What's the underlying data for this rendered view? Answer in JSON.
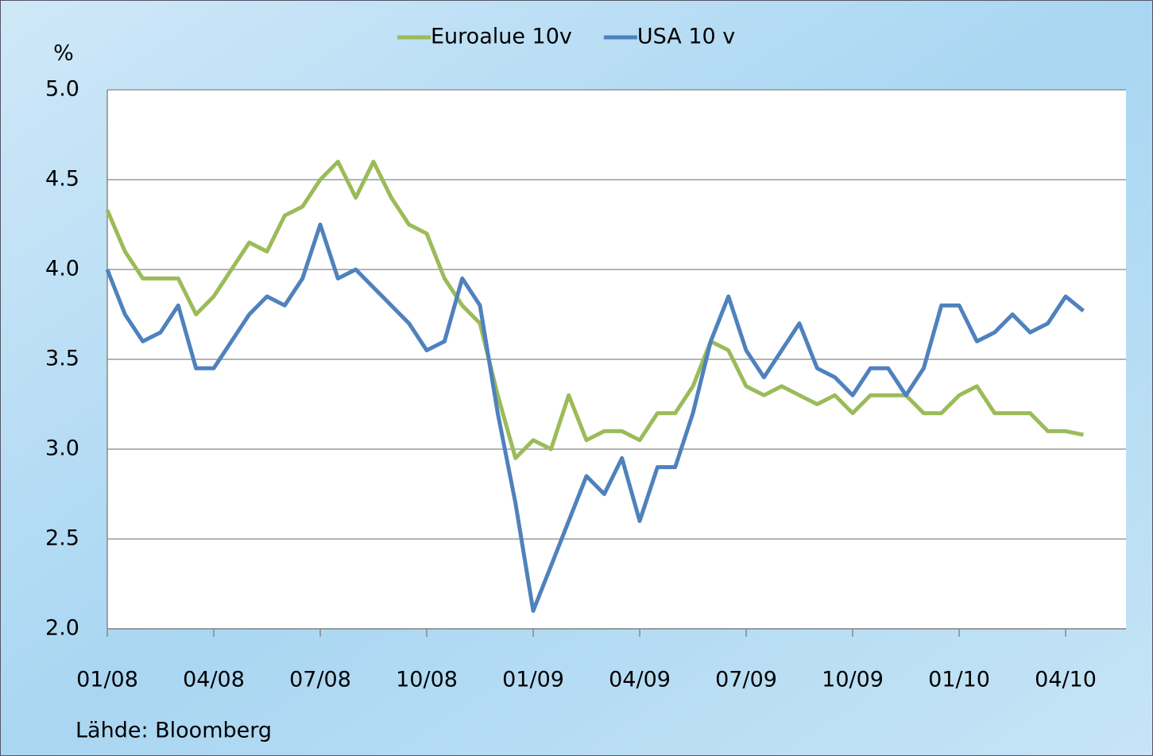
{
  "chart_data": {
    "type": "line",
    "y_label": "%",
    "source": "Lähde: Bloomberg",
    "legend": "top",
    "grid": true,
    "x": [
      0,
      0.5,
      1,
      1.5,
      2,
      2.5,
      3,
      3.5,
      4,
      4.5,
      5,
      5.5,
      6,
      6.5,
      7,
      7.5,
      8,
      8.5,
      9,
      9.5,
      10,
      10.5,
      11,
      11.5,
      12,
      12.5,
      13,
      13.5,
      14,
      14.5,
      15,
      15.5,
      16,
      16.5,
      17,
      17.5,
      18,
      18.5,
      19,
      19.5,
      20,
      20.5,
      21,
      21.5,
      22,
      22.5,
      23,
      23.5,
      24,
      24.5,
      25,
      25.5,
      26,
      26.5,
      27,
      27.5
    ],
    "series": [
      {
        "name": "Euroalue 10v",
        "color": "#9bbb59",
        "values": [
          4.33,
          4.1,
          3.95,
          3.95,
          3.95,
          3.75,
          3.85,
          4.0,
          4.15,
          4.1,
          4.3,
          4.35,
          4.5,
          4.6,
          4.4,
          4.6,
          4.4,
          4.25,
          4.2,
          3.95,
          3.8,
          3.7,
          3.3,
          2.95,
          3.05,
          3.0,
          3.3,
          3.05,
          3.1,
          3.1,
          3.05,
          3.2,
          3.2,
          3.35,
          3.6,
          3.55,
          3.35,
          3.3,
          3.35,
          3.3,
          3.25,
          3.3,
          3.2,
          3.3,
          3.3,
          3.3,
          3.2,
          3.2,
          3.3,
          3.35,
          3.2,
          3.2,
          3.2,
          3.1,
          3.1,
          3.08
        ]
      },
      {
        "name": "USA 10 v",
        "color": "#4f81bd",
        "values": [
          4.0,
          3.75,
          3.6,
          3.65,
          3.8,
          3.45,
          3.45,
          3.6,
          3.75,
          3.85,
          3.8,
          3.95,
          4.25,
          3.95,
          4.0,
          3.9,
          3.8,
          3.7,
          3.55,
          3.6,
          3.95,
          3.8,
          3.2,
          2.7,
          2.1,
          2.35,
          2.6,
          2.85,
          2.75,
          2.95,
          2.6,
          2.9,
          2.9,
          3.2,
          3.6,
          3.85,
          3.55,
          3.4,
          3.55,
          3.7,
          3.45,
          3.4,
          3.3,
          3.45,
          3.45,
          3.3,
          3.45,
          3.8,
          3.8,
          3.6,
          3.65,
          3.75,
          3.65,
          3.7,
          3.85,
          3.77
        ]
      }
    ],
    "xlim": [
      0,
      28.7
    ],
    "xticks": [
      {
        "value": 0,
        "label": "01/08"
      },
      {
        "value": 3,
        "label": "04/08"
      },
      {
        "value": 6,
        "label": "07/08"
      },
      {
        "value": 9,
        "label": "10/08"
      },
      {
        "value": 12,
        "label": "01/09"
      },
      {
        "value": 15,
        "label": "04/09"
      },
      {
        "value": 18,
        "label": "07/09"
      },
      {
        "value": 21,
        "label": "10/09"
      },
      {
        "value": 24,
        "label": "01/10"
      },
      {
        "value": 27,
        "label": "04/10"
      }
    ],
    "ylim": [
      2.0,
      5.0
    ],
    "yticks": [
      {
        "value": 2.0,
        "label": "2.0"
      },
      {
        "value": 2.5,
        "label": "2.5"
      },
      {
        "value": 3.0,
        "label": "3.0"
      },
      {
        "value": 3.5,
        "label": "3.5"
      },
      {
        "value": 4.0,
        "label": "4.0"
      },
      {
        "value": 4.5,
        "label": "4.5"
      },
      {
        "value": 5.0,
        "label": "5.0"
      }
    ]
  }
}
